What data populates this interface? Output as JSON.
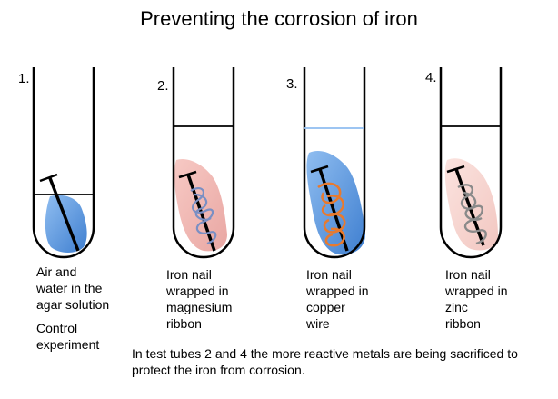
{
  "title": "Preventing the corrosion of iron",
  "tubes": [
    {
      "number": "1.",
      "caption": [
        "Air and",
        "water in the",
        "agar solution"
      ],
      "subcaption": [
        "Control",
        "experiment"
      ]
    },
    {
      "number": "2.",
      "caption": [
        "Iron nail",
        "wrapped in",
        "magnesium",
        "ribbon"
      ],
      "wrap_color": "#7a8fc4",
      "solution_color": "#f2b7b3"
    },
    {
      "number": "3.",
      "caption": [
        "Iron nail",
        "wrapped in",
        "copper",
        "wire"
      ],
      "wrap_color": "#e87a2e",
      "solution_color": "#4f8fd6"
    },
    {
      "number": "4.",
      "caption": [
        "Iron nail",
        "wrapped in",
        "zinc",
        "ribbon"
      ],
      "wrap_color": "#8a8a8a",
      "solution_color": "#f8d4cf"
    }
  ],
  "note": [
    "In test tubes 2 and 4 the more reactive metals are being sacrificed to",
    "protect the iron from corrosion."
  ],
  "colors": {
    "water": "#4f8fd6",
    "glass": "#000000",
    "nail": "#000000"
  }
}
